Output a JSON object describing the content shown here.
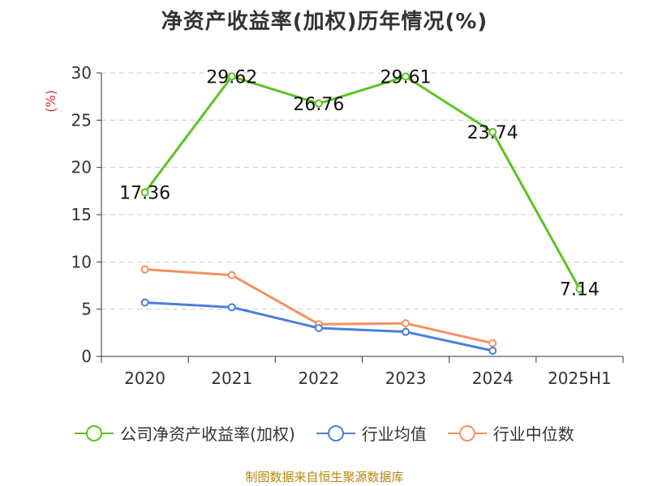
{
  "title": "净资产收益率(加权)历年情况(%)",
  "source": "制图数据来自恒生聚源数据库",
  "chart_data": {
    "type": "line",
    "categories": [
      "2020",
      "2021",
      "2022",
      "2023",
      "2024",
      "2025H1"
    ],
    "ylabel": "(%)",
    "ylim": [
      0,
      30
    ],
    "yticks": [
      0,
      5,
      10,
      15,
      20,
      25,
      30
    ],
    "grid": "horizontal dashed",
    "legend": "bottom",
    "series": [
      {
        "name": "公司净资产收益率(加权)",
        "color": "#5bc322",
        "values": [
          17.36,
          29.62,
          26.76,
          29.61,
          23.74,
          7.14
        ],
        "labels": [
          "17.36",
          "29.62",
          "26.76",
          "29.61",
          "23.74",
          "7.14"
        ]
      },
      {
        "name": "行业均值",
        "color": "#4a7fdb",
        "values": [
          5.7,
          5.2,
          3.0,
          2.6,
          0.6,
          null
        ]
      },
      {
        "name": "行业中位数",
        "color": "#f59060",
        "values": [
          9.2,
          8.6,
          3.4,
          3.5,
          1.4,
          null
        ]
      }
    ]
  }
}
